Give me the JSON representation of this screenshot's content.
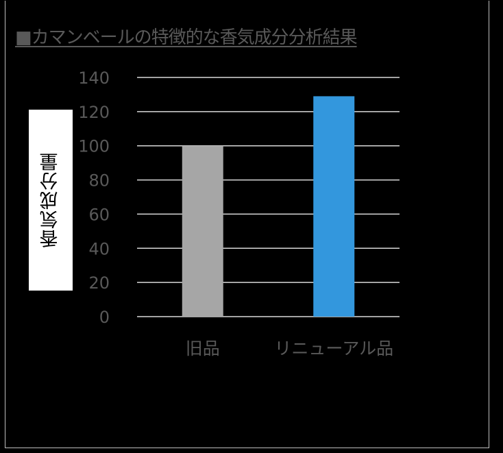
{
  "chart_data": {
    "type": "bar",
    "title": "■カマンベールの特徴的な香気成分分析結果",
    "ylabel": "香気成分量",
    "xlabel": "",
    "categories": [
      "旧品",
      "リニューアル品"
    ],
    "values": [
      100,
      129
    ],
    "bar_colors": [
      "#a6a6a6",
      "#3397dd"
    ],
    "ylim": [
      0,
      140
    ],
    "yticks": [
      0,
      20,
      40,
      60,
      80,
      100,
      120,
      140
    ],
    "grid": true,
    "legend": "none"
  },
  "colors": {
    "background": "#000000",
    "gridline": "#d9d9d9",
    "text": "#595959"
  }
}
